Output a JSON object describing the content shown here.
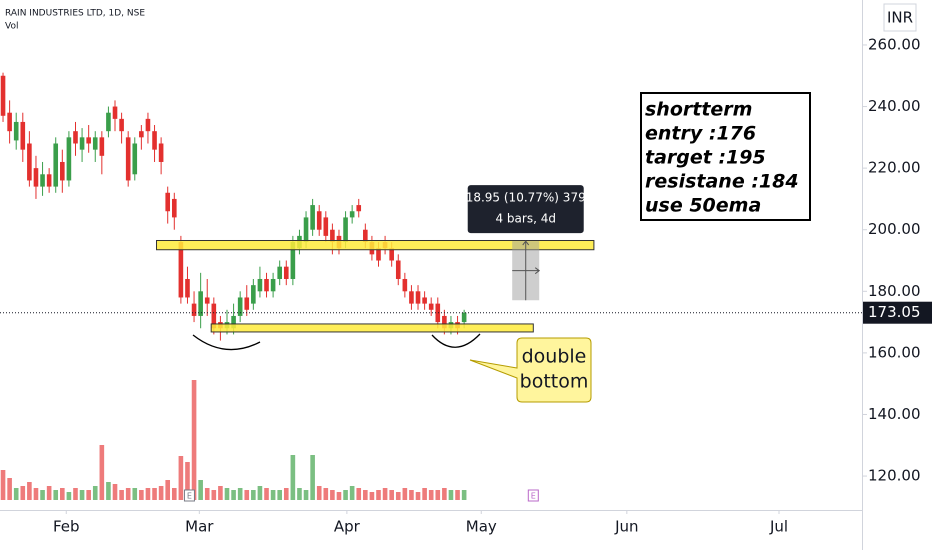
{
  "chart_data": {
    "type": "candlestick",
    "title": "RAIN INDUSTRIES LTD, 1D, NSE",
    "volume_label": "Vol",
    "currency": "INR",
    "last_price": 173.05,
    "last_price_label": "173.05",
    "up_color": "#3a9e4a",
    "down_color": "#e3302e",
    "volume_up_color": "#7bbf82",
    "volume_down_color": "#ee7b7b",
    "x": [
      0,
      1,
      2,
      3,
      4,
      5,
      6,
      7,
      8,
      9,
      10,
      11,
      12,
      13,
      14,
      15,
      16,
      17,
      18,
      19,
      20,
      21,
      22,
      23,
      24,
      25,
      26,
      27,
      28,
      29,
      30,
      31,
      32,
      33,
      34,
      35,
      36,
      37,
      38,
      39,
      40,
      41,
      42,
      43,
      44,
      45,
      46,
      47,
      48,
      49,
      50,
      51,
      52,
      53,
      54,
      55,
      56,
      57,
      58,
      59,
      60,
      61,
      62,
      63,
      64,
      65,
      66,
      67,
      68,
      69,
      70
    ],
    "open": [
      250,
      238,
      229,
      235,
      228,
      220,
      214,
      218,
      214,
      222,
      216,
      232,
      226,
      230,
      226,
      230,
      232,
      240,
      236,
      230,
      218,
      232,
      236,
      232,
      228,
      212,
      210,
      196,
      184,
      176,
      172,
      178,
      176,
      170,
      168,
      168,
      172,
      178,
      176,
      180,
      184,
      180,
      184,
      188,
      184,
      194,
      196,
      200,
      206,
      204,
      200,
      198,
      196,
      204,
      208,
      200,
      196,
      194,
      196,
      194,
      190,
      184,
      180,
      180,
      178,
      176,
      176,
      172,
      168,
      170,
      170
    ],
    "high": [
      251,
      242,
      238,
      238,
      232,
      224,
      222,
      220,
      230,
      226,
      232,
      235,
      233,
      234,
      232,
      232,
      240,
      242,
      238,
      232,
      230,
      234,
      238,
      234,
      230,
      214,
      212,
      198,
      188,
      180,
      186,
      184,
      178,
      172,
      174,
      176,
      180,
      182,
      184,
      188,
      186,
      186,
      190,
      190,
      198,
      200,
      206,
      210,
      208,
      206,
      202,
      200,
      206,
      208,
      210,
      202,
      198,
      196,
      198,
      196,
      192,
      186,
      182,
      182,
      180,
      178,
      178,
      174,
      172,
      172,
      174
    ],
    "low": [
      235,
      228,
      226,
      222,
      214,
      210,
      211,
      212,
      212,
      212,
      214,
      224,
      222,
      225,
      222,
      218,
      230,
      232,
      228,
      214,
      216,
      226,
      228,
      222,
      218,
      202,
      200,
      176,
      176,
      170,
      168,
      172,
      166,
      164,
      166,
      166,
      170,
      172,
      174,
      178,
      178,
      178,
      182,
      182,
      182,
      192,
      194,
      198,
      198,
      196,
      192,
      192,
      194,
      202,
      204,
      194,
      190,
      188,
      192,
      188,
      182,
      178,
      174,
      174,
      174,
      172,
      168,
      166,
      166,
      166,
      168
    ],
    "close": [
      237,
      232,
      235,
      226,
      216,
      214,
      218,
      214,
      228,
      216,
      230,
      228,
      230,
      228,
      230,
      224,
      238,
      236,
      232,
      216,
      228,
      230,
      232,
      226,
      222,
      206,
      204,
      178,
      178,
      172,
      180,
      176,
      168,
      168,
      170,
      172,
      178,
      174,
      182,
      184,
      180,
      184,
      188,
      184,
      196,
      198,
      204,
      208,
      200,
      198,
      196,
      194,
      204,
      206,
      206,
      196,
      192,
      190,
      194,
      190,
      184,
      180,
      176,
      176,
      176,
      174,
      170,
      168,
      170,
      168,
      173.05
    ],
    "volume": [
      30,
      22,
      12,
      14,
      18,
      12,
      10,
      14,
      10,
      12,
      8,
      12,
      10,
      10,
      14,
      55,
      18,
      16,
      10,
      12,
      12,
      10,
      12,
      12,
      14,
      20,
      12,
      44,
      38,
      120,
      20,
      12,
      10,
      14,
      12,
      10,
      12,
      10,
      10,
      14,
      12,
      10,
      10,
      12,
      45,
      12,
      10,
      45,
      14,
      12,
      10,
      8,
      10,
      14,
      12,
      10,
      8,
      10,
      12,
      10,
      8,
      12,
      10,
      8,
      12,
      10,
      10,
      12,
      10,
      10,
      10
    ],
    "volume_ylim": [
      0,
      500
    ],
    "xlim": [
      -0.46,
      130.4
    ],
    "xticks": [
      {
        "value": 9.6,
        "label": "Feb"
      },
      {
        "value": 29.8,
        "label": "Mar"
      },
      {
        "value": 52.2,
        "label": "Apr"
      },
      {
        "value": 72.6,
        "label": "May"
      },
      {
        "value": 94.7,
        "label": "Jun"
      },
      {
        "value": 117.8,
        "label": "Jul"
      }
    ],
    "ylim": [
      108.98,
      274.6
    ],
    "yticks": [
      {
        "value": 120,
        "label": "120.00"
      },
      {
        "value": 140,
        "label": "140.00"
      },
      {
        "value": 160,
        "label": "160.00"
      },
      {
        "value": 180,
        "label": "180.00"
      },
      {
        "value": 200,
        "label": "200.00"
      },
      {
        "value": 220,
        "label": "220.00"
      },
      {
        "value": 240,
        "label": "240.00"
      },
      {
        "value": 260,
        "label": "260.00"
      }
    ],
    "zones": [
      {
        "top": 196.5,
        "bottom": 193.5,
        "x0": 23.3,
        "x1": 89.7,
        "color": "#ffeb3b"
      },
      {
        "top": 169.4,
        "bottom": 166.8,
        "x0": 31.6,
        "x1": 80.5,
        "color": "#ffeb3b"
      }
    ],
    "measure": {
      "top": 196.3,
      "bottom": 177.1,
      "x0": 77.3,
      "x1": 81.4,
      "line1": "18.95 (10.77%) 379",
      "line2": "4 bars, 4d"
    },
    "callout": [
      "double",
      "bottom"
    ],
    "textbox": [
      "shortterm",
      "entry  :176",
      "target :195",
      "resistane :184",
      "use 50ema"
    ],
    "earnings_markers": [
      {
        "x": 28.3,
        "label": "E"
      },
      {
        "x": 80.5,
        "label": "E"
      }
    ]
  }
}
